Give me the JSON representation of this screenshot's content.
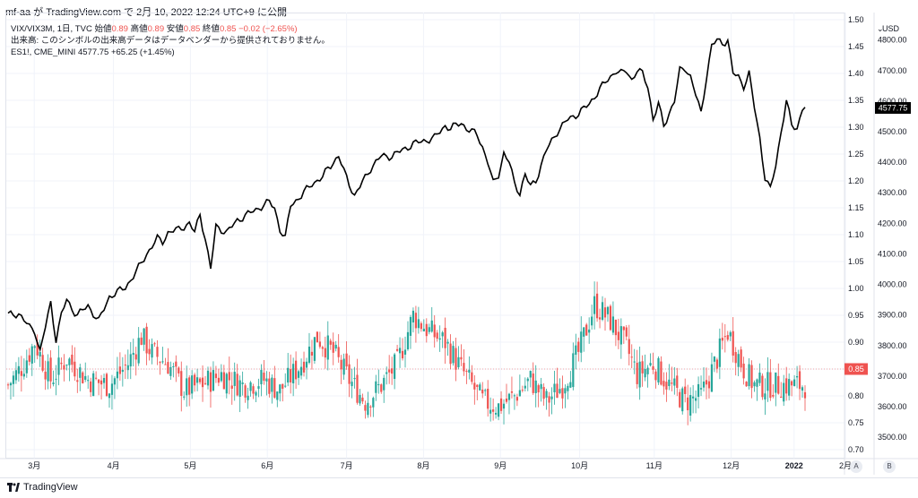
{
  "header": {
    "attribution": "mf-aa が TradingView.com で 2月 10, 2022 12:24 UTC+9 に公開"
  },
  "legend": {
    "symbol": "VIX/VIX3M, 1日, TVC",
    "open_label": "始値",
    "open": "0.89",
    "high_label": "高値",
    "high": "0.89",
    "low_label": "安値",
    "low": "0.85",
    "close_label": "終値",
    "close": "0.85",
    "change": "−0.02 (−2.65%)",
    "volume_note": "出来高: このシンボルの出来高データはデータベンダーから提供されておりません。",
    "es_symbol": "ES1!, CME_MINI",
    "es_value": "4577.75",
    "es_change": "+65.25 (+1.45%)"
  },
  "currency": "USD",
  "price_badges": {
    "ratio_last": "0.85",
    "es_last": "4577.75"
  },
  "corner_buttons": {
    "auto": "A",
    "back": "B"
  },
  "footer": {
    "logo_text": "TradingView"
  },
  "colors": {
    "up": "#26a69a",
    "down": "#ef5350",
    "line": "#000000",
    "grid": "#f0f3fa"
  },
  "chart_data": [
    {
      "type": "candlestick",
      "title": "VIX/VIX3M, 1日, TVC",
      "axis": "left-scale (displayed at first column)",
      "ylim": [
        0.67,
        1.5
      ],
      "ticks": [
        "1.50",
        "1.45",
        "1.40",
        "1.35",
        "1.30",
        "1.25",
        "1.20",
        "1.15",
        "1.10",
        "1.05",
        "1.00",
        "0.95",
        "0.90",
        "0.85",
        "0.80",
        "0.75",
        "0.70"
      ],
      "last_value": 0.85,
      "x_labels": [
        "3月",
        "4月",
        "5月",
        "6月",
        "7月",
        "8月",
        "9月",
        "10月",
        "11月",
        "12月",
        "2022",
        "2月"
      ],
      "anchor_points": [
        [
          0,
          0.82
        ],
        [
          6,
          0.86
        ],
        [
          10,
          0.9
        ],
        [
          16,
          0.83
        ],
        [
          22,
          0.87
        ],
        [
          30,
          0.83
        ],
        [
          38,
          0.82
        ],
        [
          45,
          0.86
        ],
        [
          50,
          0.91
        ],
        [
          54,
          0.88
        ],
        [
          60,
          0.86
        ],
        [
          66,
          0.81
        ],
        [
          72,
          0.82
        ],
        [
          80,
          0.84
        ],
        [
          88,
          0.82
        ],
        [
          96,
          0.83
        ],
        [
          102,
          0.81
        ],
        [
          110,
          0.86
        ],
        [
          116,
          0.91
        ],
        [
          122,
          0.88
        ],
        [
          128,
          0.83
        ],
        [
          134,
          0.79
        ],
        [
          140,
          0.82
        ],
        [
          146,
          0.86
        ],
        [
          152,
          0.95
        ],
        [
          158,
          0.92
        ],
        [
          164,
          0.9
        ],
        [
          170,
          0.85
        ],
        [
          174,
          0.82
        ],
        [
          178,
          0.79
        ],
        [
          184,
          0.78
        ],
        [
          190,
          0.8
        ],
        [
          196,
          0.83
        ],
        [
          202,
          0.79
        ],
        [
          208,
          0.82
        ],
        [
          214,
          0.88
        ],
        [
          220,
          0.97
        ],
        [
          226,
          0.94
        ],
        [
          232,
          0.89
        ],
        [
          236,
          0.84
        ],
        [
          242,
          0.86
        ],
        [
          248,
          0.82
        ],
        [
          254,
          0.79
        ],
        [
          260,
          0.8
        ],
        [
          266,
          0.87
        ],
        [
          270,
          0.92
        ],
        [
          276,
          0.85
        ],
        [
          280,
          0.82
        ]
      ]
    },
    {
      "type": "line",
      "title": "ES1!, CME_MINI",
      "axis": "right-scale",
      "ylim": [
        3430,
        4890
      ],
      "ticks": [
        "4800.00",
        "4700.00",
        "4600.00",
        "4500.00",
        "4400.00",
        "4300.00",
        "4200.00",
        "4100.00",
        "4000.00",
        "3900.00",
        "3800.00",
        "3700.00",
        "3600.00",
        "3500.00"
      ],
      "last_value": 4577.75,
      "anchor_points": [
        [
          0,
          3900
        ],
        [
          4,
          3905
        ],
        [
          8,
          3860
        ],
        [
          10,
          3850
        ],
        [
          12,
          3780
        ],
        [
          14,
          3860
        ],
        [
          16,
          3940
        ],
        [
          18,
          3820
        ],
        [
          20,
          3900
        ],
        [
          22,
          3950
        ],
        [
          24,
          3920
        ],
        [
          26,
          3900
        ],
        [
          30,
          3930
        ],
        [
          34,
          3880
        ],
        [
          38,
          3960
        ],
        [
          40,
          3970
        ],
        [
          44,
          3990
        ],
        [
          48,
          4040
        ],
        [
          52,
          4100
        ],
        [
          56,
          4150
        ],
        [
          58,
          4140
        ],
        [
          60,
          4170
        ],
        [
          64,
          4180
        ],
        [
          68,
          4200
        ],
        [
          70,
          4170
        ],
        [
          72,
          4230
        ],
        [
          74,
          4150
        ],
        [
          76,
          4050
        ],
        [
          78,
          4190
        ],
        [
          82,
          4170
        ],
        [
          86,
          4210
        ],
        [
          90,
          4230
        ],
        [
          94,
          4250
        ],
        [
          98,
          4270
        ],
        [
          100,
          4250
        ],
        [
          102,
          4180
        ],
        [
          104,
          4150
        ],
        [
          106,
          4260
        ],
        [
          110,
          4290
        ],
        [
          114,
          4330
        ],
        [
          118,
          4350
        ],
        [
          120,
          4380
        ],
        [
          124,
          4420
        ],
        [
          126,
          4370
        ],
        [
          128,
          4330
        ],
        [
          130,
          4290
        ],
        [
          132,
          4320
        ],
        [
          136,
          4380
        ],
        [
          140,
          4420
        ],
        [
          144,
          4420
        ],
        [
          148,
          4440
        ],
        [
          152,
          4460
        ],
        [
          156,
          4470
        ],
        [
          160,
          4480
        ],
        [
          164,
          4520
        ],
        [
          166,
          4510
        ],
        [
          170,
          4530
        ],
        [
          172,
          4510
        ],
        [
          176,
          4490
        ],
        [
          178,
          4450
        ],
        [
          180,
          4400
        ],
        [
          182,
          4330
        ],
        [
          184,
          4360
        ],
        [
          186,
          4430
        ],
        [
          188,
          4400
        ],
        [
          190,
          4330
        ],
        [
          192,
          4300
        ],
        [
          194,
          4360
        ],
        [
          196,
          4320
        ],
        [
          198,
          4340
        ],
        [
          200,
          4390
        ],
        [
          202,
          4440
        ],
        [
          206,
          4500
        ],
        [
          210,
          4540
        ],
        [
          214,
          4560
        ],
        [
          218,
          4590
        ],
        [
          222,
          4640
        ],
        [
          226,
          4680
        ],
        [
          228,
          4700
        ],
        [
          230,
          4690
        ],
        [
          232,
          4700
        ],
        [
          234,
          4670
        ],
        [
          236,
          4700
        ],
        [
          238,
          4690
        ],
        [
          240,
          4650
        ],
        [
          242,
          4540
        ],
        [
          244,
          4590
        ],
        [
          246,
          4520
        ],
        [
          248,
          4560
        ],
        [
          250,
          4600
        ],
        [
          252,
          4700
        ],
        [
          254,
          4710
        ],
        [
          256,
          4680
        ],
        [
          258,
          4620
        ],
        [
          260,
          4560
        ],
        [
          262,
          4680
        ],
        [
          264,
          4780
        ],
        [
          266,
          4800
        ],
        [
          268,
          4790
        ],
        [
          270,
          4800
        ],
        [
          272,
          4690
        ],
        [
          274,
          4680
        ],
        [
          276,
          4650
        ],
        [
          278,
          4690
        ],
        [
          280,
          4580
        ],
        [
          282,
          4480
        ],
        [
          284,
          4350
        ],
        [
          286,
          4310
        ],
        [
          288,
          4390
        ],
        [
          290,
          4500
        ],
        [
          292,
          4600
        ],
        [
          294,
          4520
        ],
        [
          296,
          4510
        ],
        [
          298,
          4577.75
        ]
      ]
    }
  ]
}
